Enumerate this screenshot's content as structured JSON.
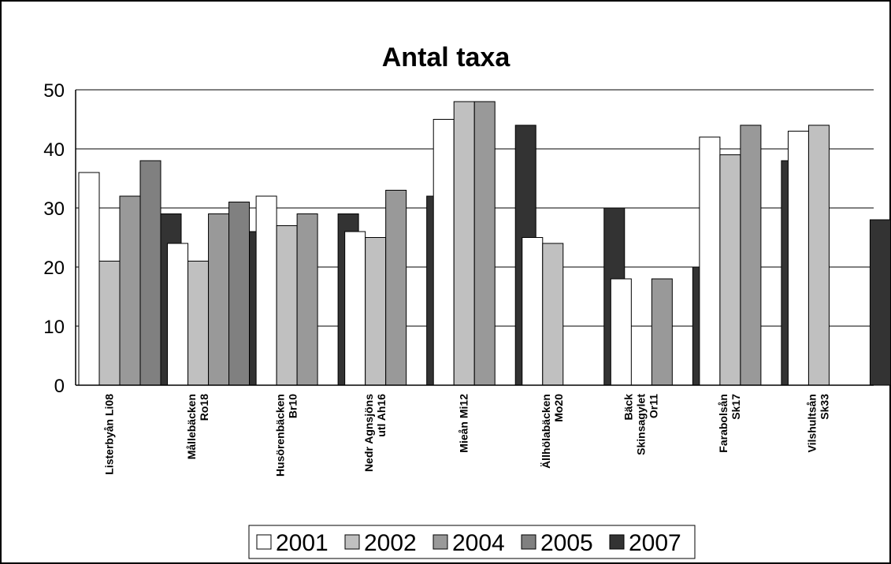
{
  "chart_data": {
    "type": "bar",
    "title": "Antal taxa",
    "xlabel": "",
    "ylabel": "",
    "ylim": [
      0,
      50
    ],
    "yticks": [
      0,
      10,
      20,
      30,
      40,
      50
    ],
    "grid": true,
    "legend_position": "bottom",
    "categories": [
      [
        "Listerbyån Li08"
      ],
      [
        "Mållebäcken",
        "Ro18"
      ],
      [
        "Husörenbäcken",
        "Br10"
      ],
      [
        "Nedr Agnsjöns",
        "utl Ah16"
      ],
      [
        "Mieån Mi12"
      ],
      [
        "Ällhölabäcken",
        "Mo20"
      ],
      [
        "Bäck",
        "Skinsagylet",
        "Or11"
      ],
      [
        "Farabolsån",
        "Sk17"
      ],
      [
        "Vilshultsån",
        "Sk33"
      ]
    ],
    "series": [
      {
        "name": "2001",
        "color": "#ffffff",
        "values": [
          36,
          24,
          32,
          26,
          45,
          25,
          18,
          42,
          43
        ]
      },
      {
        "name": "2002",
        "color": "#c0c0c0",
        "values": [
          21,
          21,
          27,
          25,
          48,
          24,
          null,
          39,
          44
        ]
      },
      {
        "name": "2004",
        "color": "#999999",
        "values": [
          32,
          29,
          29,
          33,
          48,
          null,
          18,
          44,
          null
        ]
      },
      {
        "name": "2005",
        "color": "#808080",
        "values": [
          38,
          31,
          null,
          null,
          null,
          null,
          null,
          null,
          null
        ]
      },
      {
        "name": "2007",
        "color": "#333333",
        "values": [
          29,
          26,
          29,
          32,
          44,
          30,
          20,
          38,
          28
        ]
      }
    ]
  }
}
